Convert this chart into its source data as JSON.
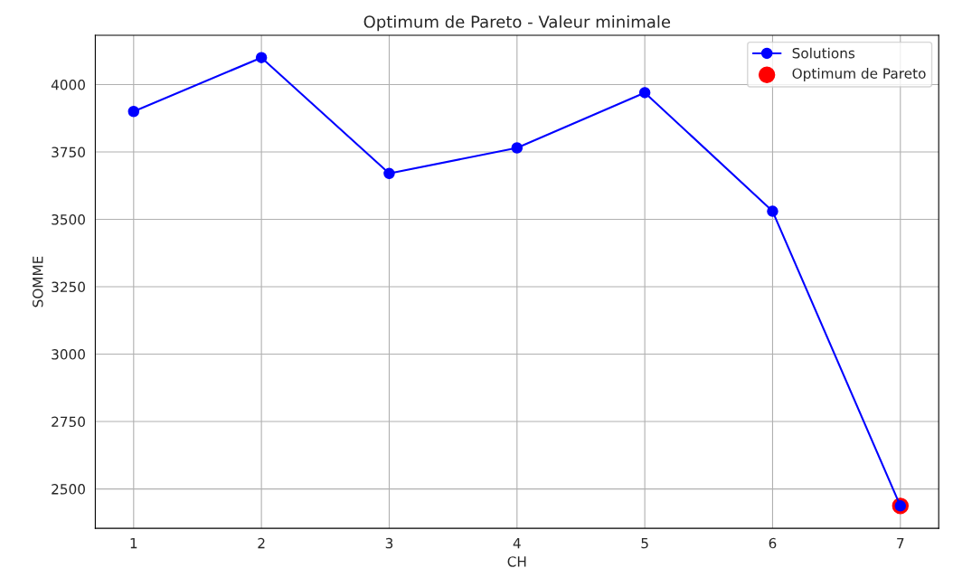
{
  "chart_data": {
    "type": "line",
    "title": "Optimum de Pareto - Valeur minimale",
    "xlabel": "CH",
    "ylabel": "SOMME",
    "x": [
      1,
      2,
      3,
      4,
      5,
      6,
      7
    ],
    "series": [
      {
        "name": "Solutions",
        "color": "#0000ff",
        "values": [
          3900,
          4100,
          3670,
          3765,
          3970,
          3530,
          2437
        ],
        "marker": "circle"
      },
      {
        "name": "Optimum de Pareto",
        "type": "scatter",
        "color": "#ff0000",
        "x": [
          7
        ],
        "values": [
          2437
        ]
      }
    ],
    "xlim": [
      0.7,
      7.3
    ],
    "xticks": [
      1,
      2,
      3,
      4,
      5,
      6,
      7
    ],
    "ylim": [
      2354,
      4183
    ],
    "yticks": [
      2500,
      2750,
      3000,
      3250,
      3500,
      3750,
      4000
    ],
    "grid": true,
    "legend": "top right"
  }
}
